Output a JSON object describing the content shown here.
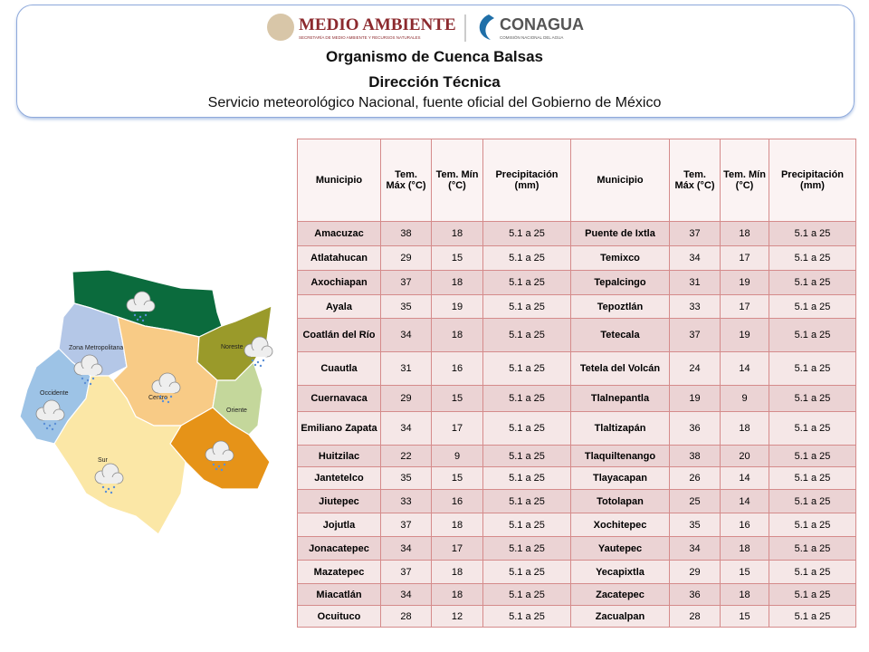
{
  "header": {
    "logo_left": "MEDIO AMBIENTE",
    "logo_left_sub": "SECRETARÍA DE MEDIO AMBIENTE Y RECURSOS NATURALES",
    "logo_right": "CONAGUA",
    "logo_right_sub": "COMISIÓN NACIONAL DEL AGUA",
    "title": "Organismo de Cuenca Balsas",
    "subtitle": "Dirección Técnica",
    "source": "Servicio meteorológico Nacional, fuente oficial del Gobierno de México"
  },
  "map": {
    "regions": [
      "Zona Metropolitana",
      "Noreste",
      "Occidente",
      "Centro",
      "Oriente",
      "Sur"
    ]
  },
  "table": {
    "headers": [
      "Municipio",
      "Tem. Máx (°C)",
      "Tem. Mín (°C)",
      "Precipitación (mm)",
      "Municipio",
      "Tem. Máx (°C)",
      "Tem. Mín (°C)",
      "Precipitación (mm)"
    ],
    "rows": [
      [
        "Amacuzac",
        38,
        18,
        "5.1 a 25",
        "Puente de Ixtla",
        37,
        18,
        "5.1 a 25"
      ],
      [
        "Atlatahucan",
        29,
        15,
        "5.1 a 25",
        "Temixco",
        34,
        17,
        "5.1 a 25"
      ],
      [
        "Axochiapan",
        37,
        18,
        "5.1 a 25",
        "Tepalcingo",
        31,
        19,
        "5.1 a 25"
      ],
      [
        "Ayala",
        35,
        19,
        "5.1 a 25",
        "Tepoztlán",
        33,
        17,
        "5.1 a 25"
      ],
      [
        "Coatlán del Río",
        34,
        18,
        "5.1 a 25",
        "Tetecala",
        37,
        19,
        "5.1 a 25"
      ],
      [
        "Cuautla",
        31,
        16,
        "5.1 a 25",
        "Tetela del Volcán",
        24,
        14,
        "5.1 a 25"
      ],
      [
        "Cuernavaca",
        29,
        15,
        "5.1 a 25",
        "Tlalnepantla",
        19,
        9,
        "5.1 a 25"
      ],
      [
        "Emiliano Zapata",
        34,
        17,
        "5.1 a 25",
        "Tlaltizapán",
        36,
        18,
        "5.1 a 25"
      ],
      [
        "Huitzilac",
        22,
        9,
        "5.1 a 25",
        "Tlaquiltenango",
        38,
        20,
        "5.1 a 25"
      ],
      [
        "Jantetelco",
        35,
        15,
        "5.1 a 25",
        "Tlayacapan",
        26,
        14,
        "5.1 a 25"
      ],
      [
        "Jiutepec",
        33,
        16,
        "5.1 a 25",
        "Totolapan",
        25,
        14,
        "5.1 a 25"
      ],
      [
        "Jojutla",
        37,
        18,
        "5.1 a 25",
        "Xochitepec",
        35,
        16,
        "5.1 a 25"
      ],
      [
        "Jonacatepec",
        34,
        17,
        "5.1 a 25",
        "Yautepec",
        34,
        18,
        "5.1 a 25"
      ],
      [
        "Mazatepec",
        37,
        18,
        "5.1 a 25",
        "Yecapixtla",
        29,
        15,
        "5.1 a 25"
      ],
      [
        "Miacatlán",
        34,
        18,
        "5.1 a 25",
        "Zacatepec",
        36,
        18,
        "5.1 a 25"
      ],
      [
        "Ocuituco",
        28,
        12,
        "5.1 a 25",
        "Zacualpan",
        28,
        15,
        "5.1 a 25"
      ]
    ]
  }
}
